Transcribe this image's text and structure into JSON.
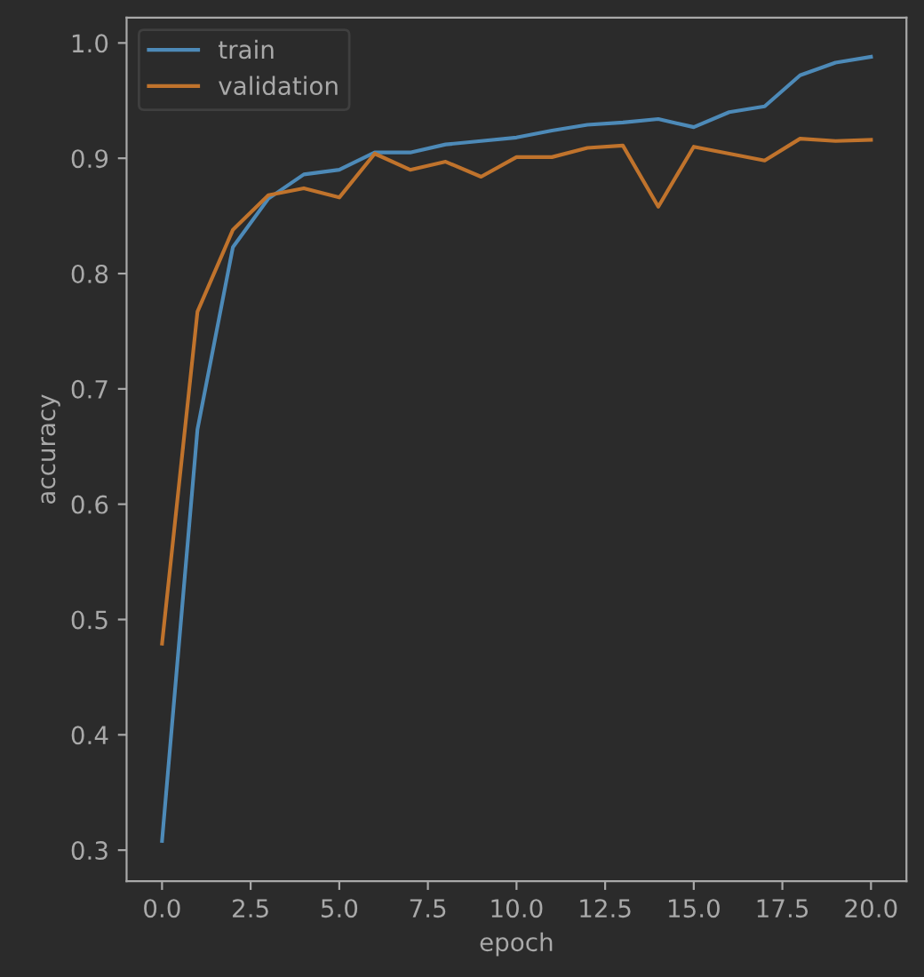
{
  "chart_data": {
    "type": "line",
    "xlabel": "epoch",
    "ylabel": "accuracy",
    "x": [
      0,
      1,
      2,
      3,
      4,
      5,
      6,
      7,
      8,
      9,
      10,
      11,
      12,
      13,
      14,
      15,
      16,
      17,
      18,
      19,
      20
    ],
    "series": [
      {
        "name": "train",
        "color": "#4d8ab8",
        "values": [
          0.308,
          0.665,
          0.823,
          0.865,
          0.886,
          0.89,
          0.905,
          0.905,
          0.912,
          0.915,
          0.918,
          0.924,
          0.929,
          0.931,
          0.934,
          0.927,
          0.94,
          0.945,
          0.972,
          0.983,
          0.988
        ]
      },
      {
        "name": "validation",
        "color": "#c0732c",
        "values": [
          0.479,
          0.767,
          0.838,
          0.868,
          0.874,
          0.866,
          0.904,
          0.89,
          0.897,
          0.884,
          0.901,
          0.901,
          0.909,
          0.911,
          0.858,
          0.91,
          0.904,
          0.898,
          0.917,
          0.915,
          0.916
        ]
      }
    ],
    "xlim": [
      -1.0,
      21.0
    ],
    "ylim": [
      0.273,
      1.022
    ],
    "xticks": [
      {
        "value": 0,
        "label": "0.0"
      },
      {
        "value": 2.5,
        "label": "2.5"
      },
      {
        "value": 5,
        "label": "5.0"
      },
      {
        "value": 7.5,
        "label": "7.5"
      },
      {
        "value": 10,
        "label": "10.0"
      },
      {
        "value": 12.5,
        "label": "12.5"
      },
      {
        "value": 15,
        "label": "15.0"
      },
      {
        "value": 17.5,
        "label": "17.5"
      },
      {
        "value": 20,
        "label": "20.0"
      }
    ],
    "yticks": [
      0.3,
      0.4,
      0.5,
      0.6,
      0.7,
      0.8,
      0.9,
      {
        "value": 1.0,
        "label": "1.0"
      }
    ],
    "legend": "top left",
    "grid": false,
    "line_style": "solid"
  }
}
